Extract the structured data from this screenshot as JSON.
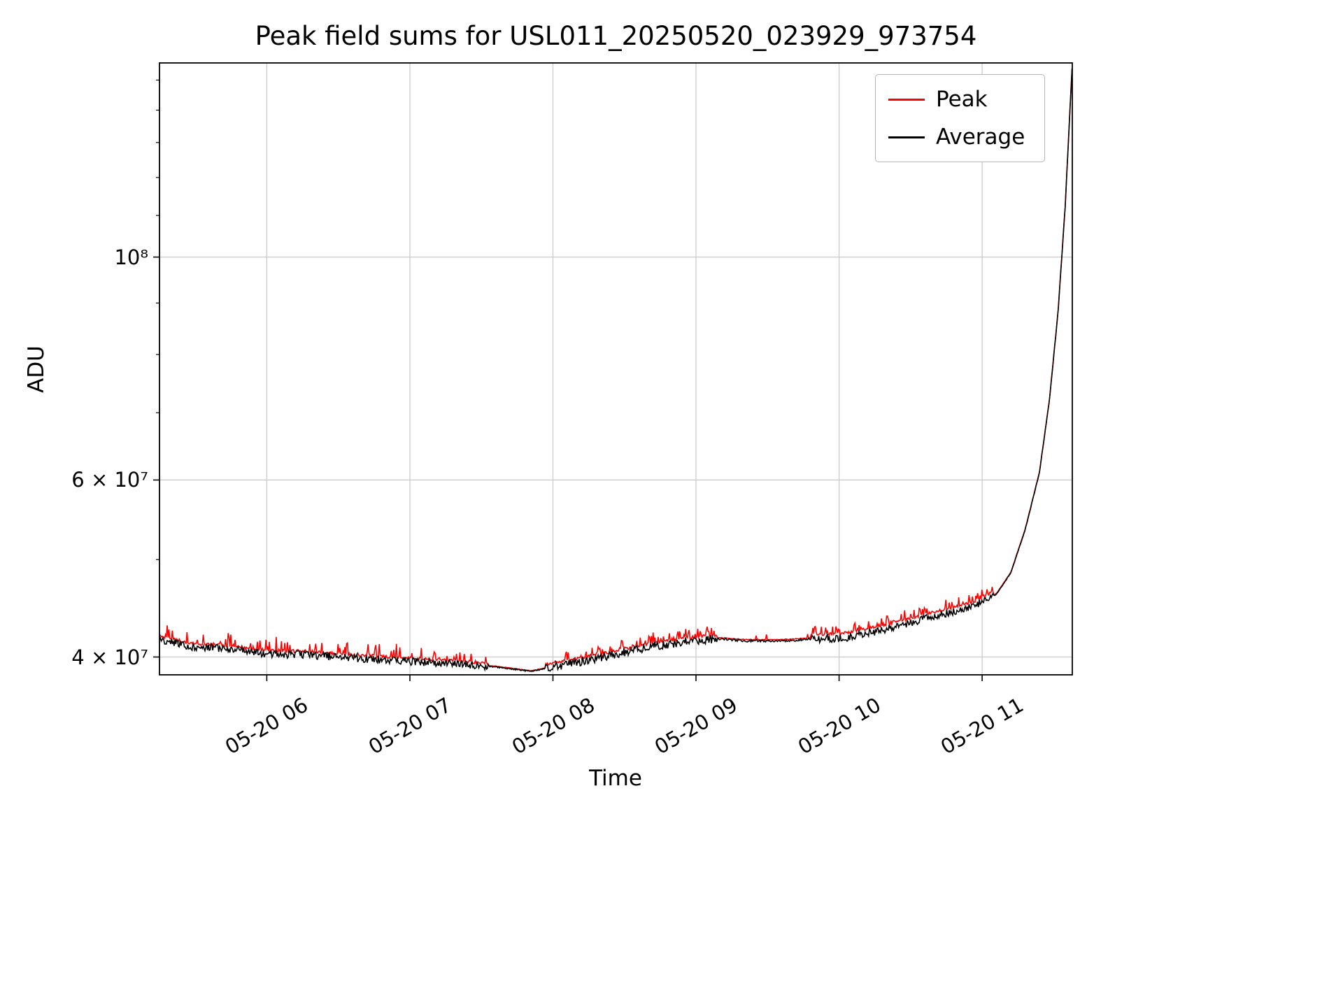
{
  "chart_data": {
    "type": "line",
    "title": "Peak field sums for USL011_20250520_023929_973754",
    "xlabel": "Time",
    "ylabel": "ADU",
    "y_scale": "log",
    "grid": true,
    "x_range_hours": [
      5.25,
      11.63
    ],
    "y_range": [
      38400000,
      156000000
    ],
    "x_ticks": [
      {
        "hour": 6,
        "label": "05-20 06"
      },
      {
        "hour": 7,
        "label": "05-20 07"
      },
      {
        "hour": 8,
        "label": "05-20 08"
      },
      {
        "hour": 9,
        "label": "05-20 09"
      },
      {
        "hour": 10,
        "label": "05-20 10"
      },
      {
        "hour": 11,
        "label": "05-20 11"
      }
    ],
    "y_ticks": [
      {
        "value": 100000000,
        "label": "10⁸"
      },
      {
        "value": 60000000,
        "label": "6 × 10⁷"
      },
      {
        "value": 40000000,
        "label": "4 × 10⁷"
      }
    ],
    "y_minor_ticks": [
      50000000,
      70000000,
      80000000,
      90000000,
      110000000,
      120000000,
      130000000,
      140000000,
      150000000
    ],
    "legend": {
      "position": "upper right",
      "entries": [
        {
          "name": "Peak",
          "color": "#ff0000"
        },
        {
          "name": "Average",
          "color": "#000000"
        }
      ]
    },
    "series": [
      {
        "name": "Peak",
        "color": "#ff0000",
        "role": "peak"
      },
      {
        "name": "Average",
        "color": "#000000",
        "role": "average"
      }
    ],
    "baseline_keypoints": [
      [
        5.25,
        41700000
      ],
      [
        5.45,
        41000000
      ],
      [
        5.7,
        40800000
      ],
      [
        6.0,
        40300000
      ],
      [
        6.3,
        40200000
      ],
      [
        6.6,
        39900000
      ],
      [
        7.0,
        39600000
      ],
      [
        7.4,
        39300000
      ],
      [
        7.6,
        39100000
      ],
      [
        7.85,
        38700000
      ],
      [
        8.0,
        39100000
      ],
      [
        8.2,
        39600000
      ],
      [
        8.45,
        40300000
      ],
      [
        8.7,
        41000000
      ],
      [
        8.95,
        41500000
      ],
      [
        9.15,
        41700000
      ],
      [
        9.35,
        41500000
      ],
      [
        9.6,
        41500000
      ],
      [
        9.85,
        41700000
      ],
      [
        10.05,
        41800000
      ],
      [
        10.25,
        42400000
      ],
      [
        10.5,
        43300000
      ],
      [
        10.75,
        44200000
      ],
      [
        10.95,
        45000000
      ],
      [
        11.1,
        46200000
      ],
      [
        11.2,
        48500000
      ],
      [
        11.3,
        53500000
      ],
      [
        11.4,
        61000000
      ],
      [
        11.47,
        72000000
      ],
      [
        11.53,
        88000000
      ],
      [
        11.58,
        112000000
      ],
      [
        11.63,
        156000000
      ]
    ],
    "noise_segments": [
      {
        "from": 5.25,
        "to": 7.55,
        "black_amp": 0.009,
        "red_offset": 0.004,
        "red_spike": 0.03,
        "spike_prob": 0.18
      },
      {
        "from": 7.55,
        "to": 7.95,
        "black_amp": 0.0015,
        "red_offset": 0.001,
        "red_spike": 0.0,
        "spike_prob": 0.0
      },
      {
        "from": 7.95,
        "to": 9.15,
        "black_amp": 0.01,
        "red_offset": 0.004,
        "red_spike": 0.022,
        "spike_prob": 0.25
      },
      {
        "from": 9.15,
        "to": 9.8,
        "black_amp": 0.0025,
        "red_offset": 0.002,
        "red_spike": 0.014,
        "spike_prob": 0.05
      },
      {
        "from": 9.8,
        "to": 11.08,
        "black_amp": 0.009,
        "red_offset": 0.007,
        "red_spike": 0.02,
        "spike_prob": 0.3
      },
      {
        "from": 11.08,
        "to": 11.63,
        "black_amp": 0.0012,
        "red_offset": 0.001,
        "red_spike": 0.0,
        "spike_prob": 0.0
      }
    ],
    "noise_seed": 42,
    "sample_step_hours": 0.006,
    "style": {
      "background": "#ffffff",
      "grid": "#c8c8c8",
      "frame": "#000000"
    }
  }
}
